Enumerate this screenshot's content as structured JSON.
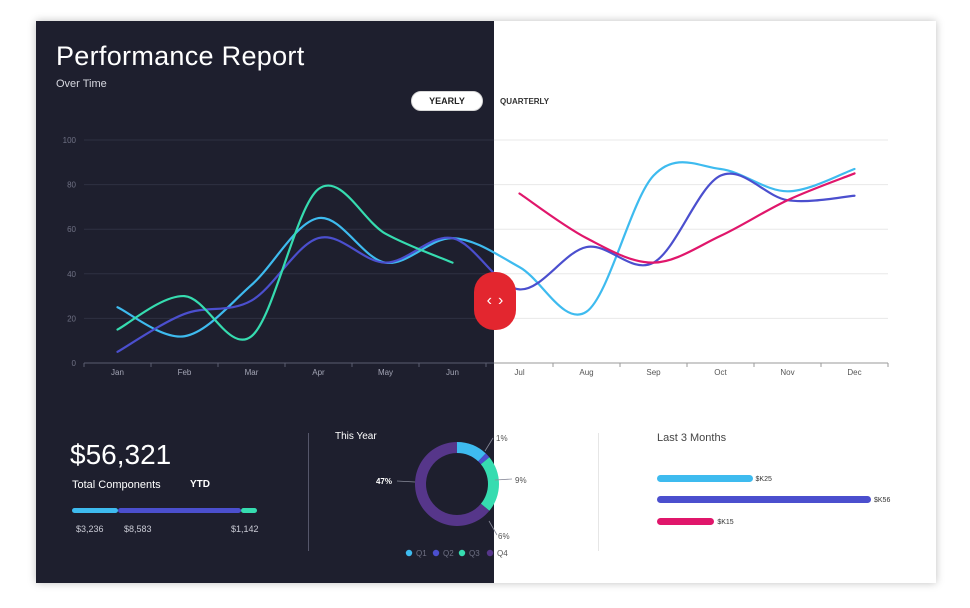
{
  "header": {
    "title": "Performance Report",
    "subtitle": "Over Time",
    "toggle_yearly": "YEARLY",
    "toggle_quarterly": "QUARTERLY"
  },
  "colors": {
    "dark_bg": "#1e1f2e",
    "cyan": "#3ebbef",
    "indigo": "#4b4fce",
    "teal": "#36dcb0",
    "magenta": "#e0166b",
    "purple": "#56368a",
    "slider": "#e3262f"
  },
  "chart_data": {
    "type": "line",
    "categories": [
      "Jan",
      "Feb",
      "Mar",
      "Apr",
      "May",
      "Jun",
      "Jul",
      "Aug",
      "Sep",
      "Oct",
      "Nov",
      "Dec"
    ],
    "y_ticks": [
      "0",
      "20",
      "40",
      "60",
      "80",
      "100"
    ],
    "ylim": [
      0,
      100
    ],
    "series": [
      {
        "name": "cyan",
        "color": "#3ebbef",
        "values": [
          25,
          12,
          35,
          65,
          45,
          56,
          43,
          23,
          84,
          87,
          77,
          87
        ]
      },
      {
        "name": "indigo",
        "color": "#4b4fce",
        "values": [
          5,
          22,
          28,
          56,
          45,
          56,
          33,
          52,
          45,
          84,
          73,
          75
        ]
      },
      {
        "name": "teal",
        "color": "#36dcb0",
        "values": [
          15,
          30,
          12,
          78,
          58,
          45,
          null,
          null,
          null,
          null,
          null,
          null
        ]
      },
      {
        "name": "magenta",
        "color": "#e0166b",
        "values": [
          null,
          null,
          null,
          null,
          null,
          null,
          76,
          56,
          45,
          57,
          73,
          85
        ]
      }
    ]
  },
  "total": {
    "value": "$56,321",
    "label": "Total Components",
    "period": "YTD",
    "breakdown": [
      "$3,236",
      "$8,583",
      "$1,142"
    ],
    "shares": [
      3236,
      8583,
      1142
    ]
  },
  "this_year": {
    "title": "This Year",
    "labels": {
      "left": "47%",
      "top_right": "1%",
      "right": "9%",
      "bottom_right": "6%"
    },
    "segments": [
      {
        "name": "Q1",
        "value": 12,
        "color": "#3ebbef"
      },
      {
        "name": "Q2",
        "value": 2,
        "color": "#4b4fce"
      },
      {
        "name": "Q3",
        "value": 22,
        "color": "#36dcb0"
      },
      {
        "name": "Q4",
        "value": 64,
        "color": "#56368a"
      }
    ],
    "legend": [
      "Q1",
      "Q2",
      "Q3",
      "Q4"
    ]
  },
  "last_3_months": {
    "title": "Last 3 Months",
    "max": 56,
    "bars": [
      {
        "label": "$K25",
        "value": 25,
        "color": "#3ebbef"
      },
      {
        "label": "$K56",
        "value": 56,
        "color": "#4b4fce"
      },
      {
        "label": "$K15",
        "value": 15,
        "color": "#e0166b"
      }
    ]
  }
}
